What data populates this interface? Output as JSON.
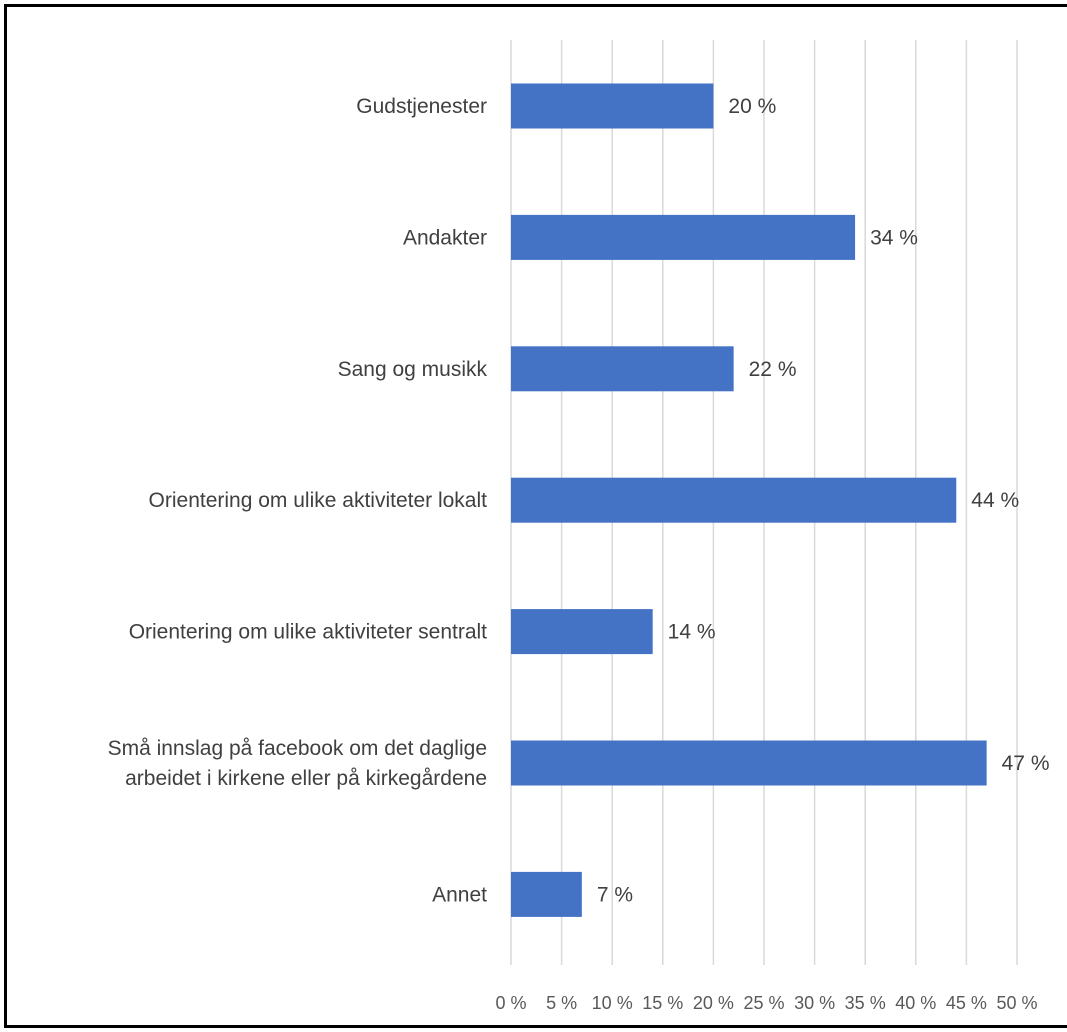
{
  "chart_data": {
    "type": "bar",
    "orientation": "horizontal",
    "title": "",
    "xlabel": "",
    "ylabel": "",
    "categories": [
      [
        "Gudstjenester"
      ],
      [
        "Andakter"
      ],
      [
        "Sang og musikk"
      ],
      [
        "Orientering om ulike aktiviteter lokalt"
      ],
      [
        "Orientering om ulike aktiviteter sentralt"
      ],
      [
        "Små innslag på facebook om det daglige",
        "arbeidet i kirkene eller på kirkegårdene"
      ],
      [
        "Annet"
      ]
    ],
    "values": [
      20,
      34,
      22,
      44,
      14,
      47,
      7
    ],
    "value_labels": [
      "20 %",
      "34 %",
      "22 %",
      "44 %",
      "14 %",
      "47 %",
      "7 %"
    ],
    "xlim": [
      0,
      50
    ],
    "xticks": [
      "0 %",
      "5 %",
      "10 %",
      "15 %",
      "20 %",
      "25 %",
      "30 %",
      "35 %",
      "40 %",
      "45 %",
      "50 %"
    ],
    "grid": "vertical",
    "legend": "none",
    "colors": {
      "bar": "#4472c4",
      "grid": "#d9d9d9",
      "text": "#404040",
      "frame": "#000000"
    }
  }
}
